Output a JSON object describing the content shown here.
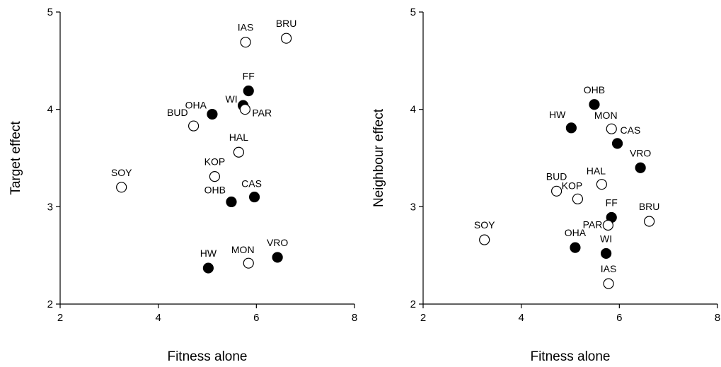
{
  "chart_data": [
    {
      "type": "scatter",
      "xlabel": "Fitness alone",
      "ylabel": "Target effect",
      "xlim": [
        2,
        8
      ],
      "ylim": [
        2,
        5
      ],
      "xticks": [
        2,
        4,
        6,
        8
      ],
      "yticks": [
        2,
        3,
        4,
        5
      ],
      "grid": false,
      "points": [
        {
          "label": "IAS",
          "x": 5.78,
          "y": 4.69,
          "filled": false
        },
        {
          "label": "BRU",
          "x": 6.61,
          "y": 4.73,
          "filled": false
        },
        {
          "label": "FF",
          "x": 5.84,
          "y": 4.19,
          "filled": true
        },
        {
          "label": "WI",
          "x": 5.73,
          "y": 4.04,
          "filled": true
        },
        {
          "label": "PAR",
          "x": 5.77,
          "y": 4.0,
          "filled": false
        },
        {
          "label": "OHA",
          "x": 5.1,
          "y": 3.95,
          "filled": true
        },
        {
          "label": "BUD",
          "x": 4.72,
          "y": 3.83,
          "filled": false
        },
        {
          "label": "HAL",
          "x": 5.64,
          "y": 3.56,
          "filled": false
        },
        {
          "label": "SOY",
          "x": 3.25,
          "y": 3.2,
          "filled": false
        },
        {
          "label": "KOP",
          "x": 5.15,
          "y": 3.31,
          "filled": false
        },
        {
          "label": "OHB",
          "x": 5.49,
          "y": 3.05,
          "filled": true
        },
        {
          "label": "CAS",
          "x": 5.96,
          "y": 3.1,
          "filled": true
        },
        {
          "label": "HW",
          "x": 5.02,
          "y": 2.37,
          "filled": true
        },
        {
          "label": "MON",
          "x": 5.84,
          "y": 2.42,
          "filled": false
        },
        {
          "label": "VRO",
          "x": 6.43,
          "y": 2.48,
          "filled": true
        }
      ]
    },
    {
      "type": "scatter",
      "xlabel": "Fitness alone",
      "ylabel": "Neighbour effect",
      "xlim": [
        2,
        8
      ],
      "ylim": [
        2,
        5
      ],
      "xticks": [
        2,
        4,
        6,
        8
      ],
      "yticks": [
        2,
        3,
        4,
        5
      ],
      "grid": false,
      "points": [
        {
          "label": "OHB",
          "x": 5.49,
          "y": 4.05,
          "filled": true
        },
        {
          "label": "HW",
          "x": 5.02,
          "y": 3.81,
          "filled": true
        },
        {
          "label": "MON",
          "x": 5.84,
          "y": 3.8,
          "filled": false
        },
        {
          "label": "CAS",
          "x": 5.96,
          "y": 3.65,
          "filled": true
        },
        {
          "label": "VRO",
          "x": 6.43,
          "y": 3.4,
          "filled": true
        },
        {
          "label": "HAL",
          "x": 5.64,
          "y": 3.23,
          "filled": false
        },
        {
          "label": "BUD",
          "x": 4.72,
          "y": 3.16,
          "filled": false
        },
        {
          "label": "KOP",
          "x": 5.15,
          "y": 3.08,
          "filled": false
        },
        {
          "label": "FF",
          "x": 5.84,
          "y": 2.89,
          "filled": true
        },
        {
          "label": "PAR",
          "x": 5.77,
          "y": 2.81,
          "filled": false
        },
        {
          "label": "BRU",
          "x": 6.61,
          "y": 2.85,
          "filled": false
        },
        {
          "label": "SOY",
          "x": 3.25,
          "y": 2.66,
          "filled": false
        },
        {
          "label": "OHA",
          "x": 5.1,
          "y": 2.58,
          "filled": true
        },
        {
          "label": "WI",
          "x": 5.73,
          "y": 2.52,
          "filled": true
        },
        {
          "label": "IAS",
          "x": 5.78,
          "y": 2.21,
          "filled": false
        }
      ]
    }
  ]
}
